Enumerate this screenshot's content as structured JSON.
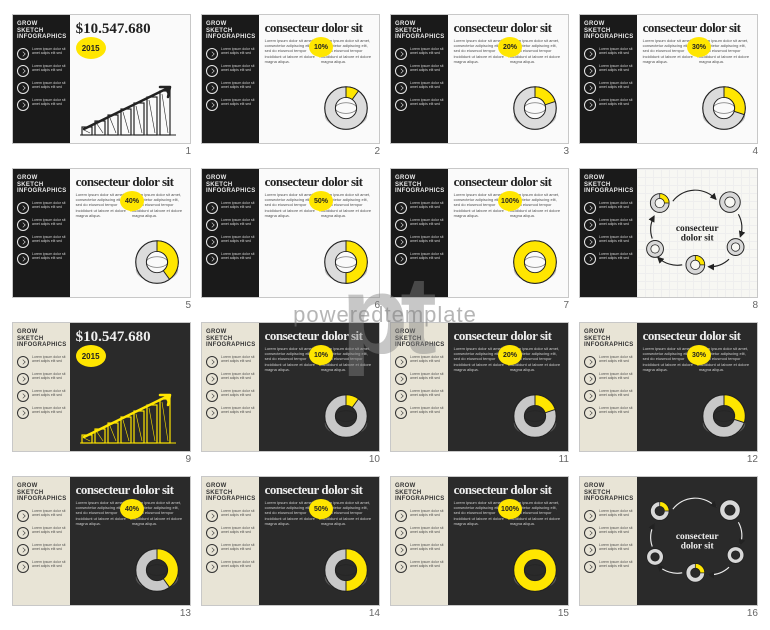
{
  "accent": "#ffe600",
  "sidebar_title": "GROW SKETCH INFOGRAPHICS",
  "sidebar_lorem": "Lorem ipsum dolor sit amet adipis elit sed",
  "title": "consecteur dolor sit",
  "price": "$10.547.680",
  "year": "2015",
  "body": "Lorem ipsum dolor sit amet, consectetur adipiscing elit, sed do eiusmod tempor incididunt ut labore et dolore magna aliqua.",
  "watermark_big": "pt",
  "watermark_text": "poweredtemplate",
  "donut_colors": {
    "ring": "#dcdcdc",
    "ring_dark": "#888888",
    "fill": "#ffe600",
    "stroke": "#222222"
  },
  "bars": {
    "n": 7,
    "max": 50,
    "values": [
      8,
      14,
      20,
      26,
      32,
      38,
      44
    ]
  },
  "slides": [
    {
      "n": 1,
      "sidebar": "dark",
      "main": "white",
      "kind": "price"
    },
    {
      "n": 2,
      "sidebar": "dark",
      "main": "white",
      "kind": "donut",
      "pct": 10
    },
    {
      "n": 3,
      "sidebar": "dark",
      "main": "white",
      "kind": "donut",
      "pct": 20
    },
    {
      "n": 4,
      "sidebar": "dark",
      "main": "white",
      "kind": "donut",
      "pct": 30
    },
    {
      "n": 5,
      "sidebar": "dark",
      "main": "white",
      "kind": "donut",
      "pct": 40
    },
    {
      "n": 6,
      "sidebar": "dark",
      "main": "white",
      "kind": "donut",
      "pct": 50
    },
    {
      "n": 7,
      "sidebar": "dark",
      "main": "white",
      "kind": "donut",
      "pct": 100
    },
    {
      "n": 8,
      "sidebar": "dark",
      "main": "white-grid",
      "kind": "cycle"
    },
    {
      "n": 9,
      "sidebar": "light",
      "main": "black",
      "kind": "price"
    },
    {
      "n": 10,
      "sidebar": "light",
      "main": "black",
      "kind": "donut",
      "pct": 10
    },
    {
      "n": 11,
      "sidebar": "light",
      "main": "black",
      "kind": "donut",
      "pct": 20
    },
    {
      "n": 12,
      "sidebar": "light",
      "main": "black",
      "kind": "donut",
      "pct": 30
    },
    {
      "n": 13,
      "sidebar": "light",
      "main": "black",
      "kind": "donut",
      "pct": 40
    },
    {
      "n": 14,
      "sidebar": "light",
      "main": "black",
      "kind": "donut",
      "pct": 50
    },
    {
      "n": 15,
      "sidebar": "light",
      "main": "black",
      "kind": "donut",
      "pct": 100
    },
    {
      "n": 16,
      "sidebar": "light",
      "main": "black",
      "kind": "cycle"
    }
  ]
}
